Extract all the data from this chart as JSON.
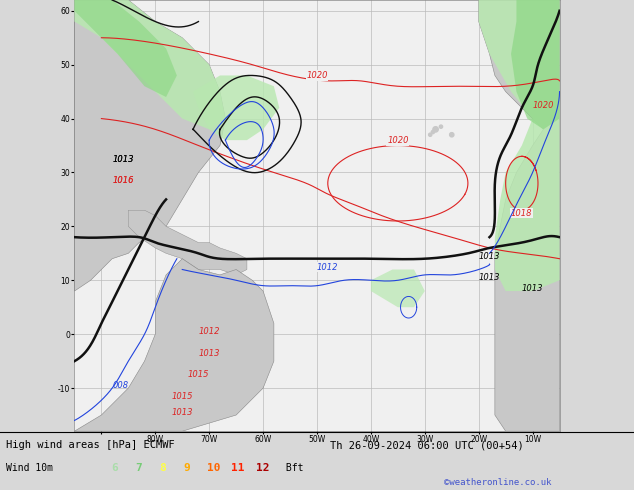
{
  "title_left": "High wind areas [hPa] ECMWF",
  "title_right": "Th 26-09-2024 06:00 UTC (00+54)",
  "subtitle_left": "Wind 10m",
  "legend_values": [
    "6",
    "7",
    "8",
    "9",
    "10",
    "11",
    "12"
  ],
  "legend_colors": [
    "#aaddaa",
    "#77cc77",
    "#ffff44",
    "#ffaa00",
    "#ff6600",
    "#ff2200",
    "#aa0000"
  ],
  "legend_suffix": " Bft",
  "credit": "©weatheronline.co.uk",
  "fig_width": 6.34,
  "fig_height": 4.9,
  "dpi": 100,
  "map_bg": "#f0f0f0",
  "land_color": "#c8c8c8",
  "green_wind": "#b8e8b0",
  "green_wind2": "#90d888",
  "sea_color": "#e8e8f0",
  "grid_color": "#bbbbbb",
  "red_line": "#dd2222",
  "blue_line": "#2244dd",
  "black_line": "#111111",
  "title_fontsize": 7.5,
  "tick_fontsize": 5.5,
  "label_fontsize": 6.0
}
